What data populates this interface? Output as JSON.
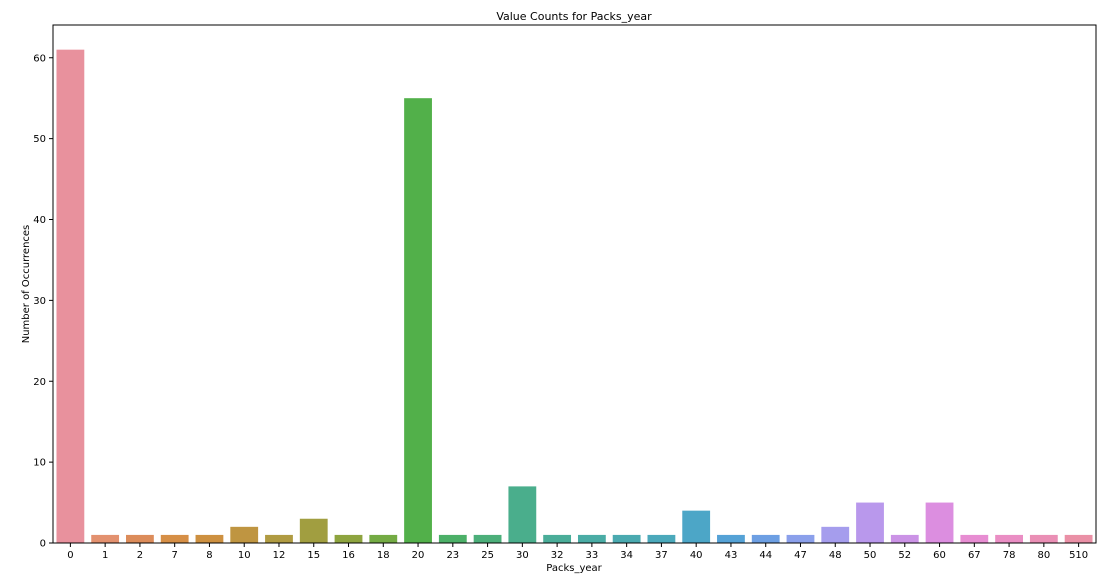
{
  "chart_data": {
    "type": "bar",
    "title": "Value Counts for Packs_year",
    "xlabel": "Packs_year",
    "ylabel": "Number of Occurrences",
    "categories": [
      "0",
      "1",
      "2",
      "7",
      "8",
      "10",
      "12",
      "15",
      "16",
      "18",
      "20",
      "23",
      "25",
      "30",
      "32",
      "33",
      "34",
      "37",
      "40",
      "43",
      "44",
      "47",
      "48",
      "50",
      "52",
      "60",
      "67",
      "78",
      "80",
      "510"
    ],
    "values": [
      61,
      1,
      1,
      1,
      1,
      2,
      1,
      3,
      1,
      1,
      55,
      1,
      1,
      7,
      1,
      1,
      1,
      1,
      4,
      1,
      1,
      1,
      2,
      5,
      1,
      5,
      1,
      1,
      1,
      1
    ],
    "colors": [
      "#e8919d",
      "#e3916f",
      "#dc8c5a",
      "#d68f46",
      "#cd9040",
      "#bf9541",
      "#b09b42",
      "#a19e40",
      "#8ea43f",
      "#74ab44",
      "#52b04a",
      "#4cb068",
      "#4caf7a",
      "#4aae8c",
      "#4aad99",
      "#4aaca5",
      "#4aaab0",
      "#4ba9bb",
      "#4ca6c7",
      "#55a2d6",
      "#6d9fe3",
      "#8ba0eb",
      "#a59ded",
      "#b998ec",
      "#cb93e6",
      "#dc8ee0",
      "#e78dd2",
      "#ea8ec4",
      "#ea8fb5",
      "#ea90a6"
    ],
    "yticks": [
      0,
      10,
      20,
      30,
      40,
      50,
      60
    ],
    "ylim": [
      0,
      64.05
    ],
    "grid": false
  }
}
